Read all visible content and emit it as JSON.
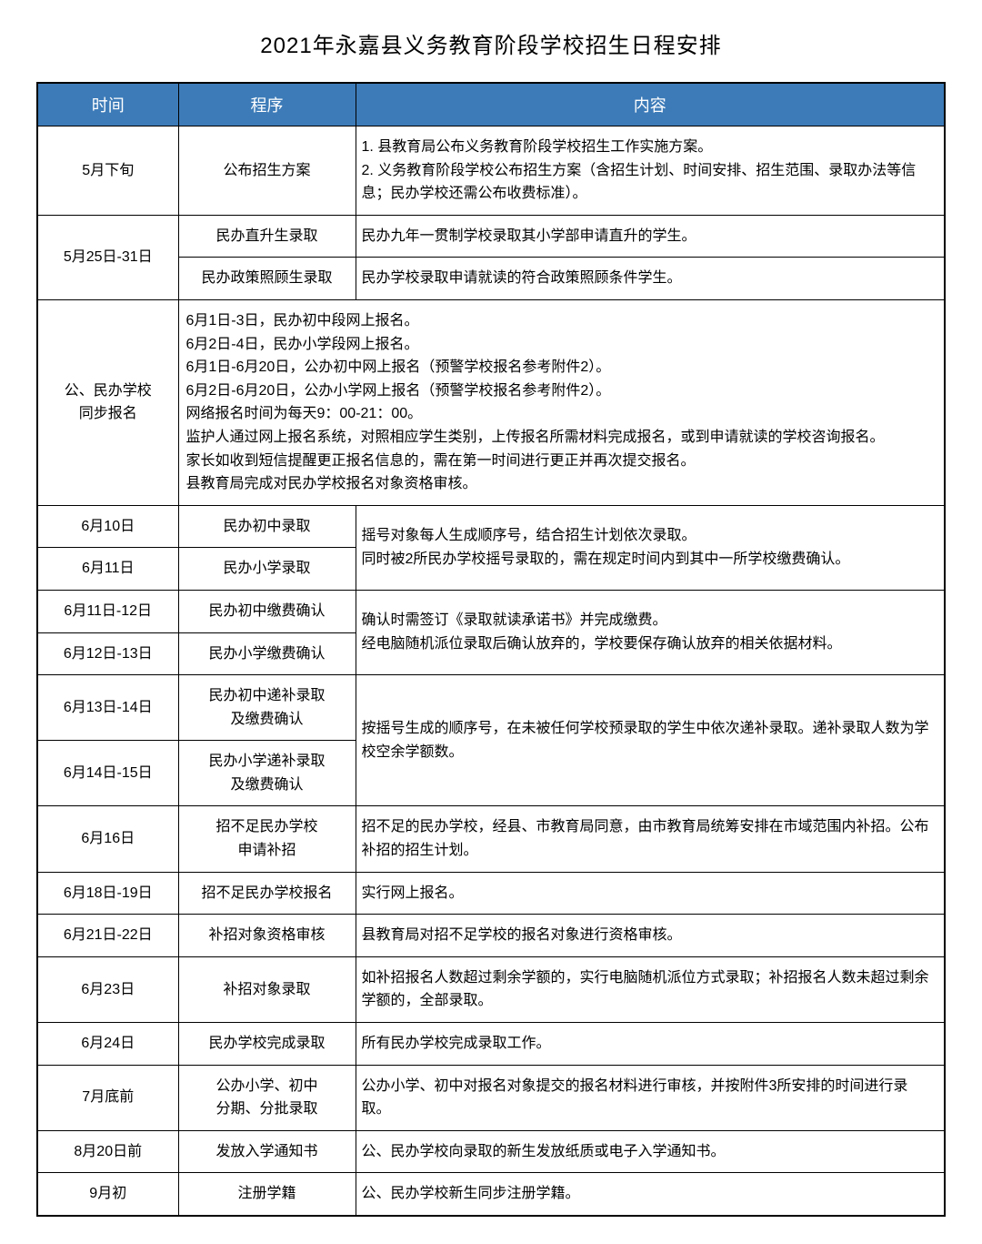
{
  "title": "2021年永嘉县义务教育阶段学校招生日程安排",
  "headers": {
    "time": "时间",
    "procedure": "程序",
    "content": "内容"
  },
  "rows": {
    "r1": {
      "time": "5月下旬",
      "proc": "公布招生方案",
      "content": "1. 县教育局公布义务教育阶段学校招生工作实施方案。\n2. 义务教育阶段学校公布招生方案（含招生计划、时间安排、招生范围、录取办法等信息；民办学校还需公布收费标准）。"
    },
    "r2": {
      "time": "5月25日-31日",
      "proc_a": "民办直升生录取",
      "content_a": "民办九年一贯制学校录取其小学部申请直升的学生。",
      "proc_b": "民办政策照顾生录取",
      "content_b": "民办学校录取申请就读的符合政策照顾条件学生。"
    },
    "r3": {
      "time": "公、民办学校\n同步报名",
      "content": "6月1日-3日，民办初中段网上报名。\n6月2日-4日，民办小学段网上报名。\n6月1日-6月20日，公办初中网上报名（预警学校报名参考附件2）。\n6月2日-6月20日，公办小学网上报名（预警学校报名参考附件2）。\n网络报名时间为每天9：00-21：00。\n监护人通过网上报名系统，对照相应学生类别，上传报名所需材料完成报名，或到申请就读的学校咨询报名。\n家长如收到短信提醒更正报名信息的，需在第一时间进行更正并再次提交报名。\n县教育局完成对民办学校报名对象资格审核。"
    },
    "r4": {
      "time_a": "6月10日",
      "proc_a": "民办初中录取",
      "time_b": "6月11日",
      "proc_b": "民办小学录取",
      "content": "摇号对象每人生成顺序号，结合招生计划依次录取。\n同时被2所民办学校摇号录取的，需在规定时间内到其中一所学校缴费确认。"
    },
    "r5": {
      "time_a": "6月11日-12日",
      "proc_a": "民办初中缴费确认",
      "time_b": "6月12日-13日",
      "proc_b": "民办小学缴费确认",
      "content": "确认时需签订《录取就读承诺书》并完成缴费。\n经电脑随机派位录取后确认放弃的，学校要保存确认放弃的相关依据材料。"
    },
    "r6": {
      "time_a": "6月13日-14日",
      "proc_a": "民办初中递补录取\n及缴费确认",
      "time_b": "6月14日-15日",
      "proc_b": "民办小学递补录取\n及缴费确认",
      "content": "按摇号生成的顺序号，在未被任何学校预录取的学生中依次递补录取。递补录取人数为学校空余学额数。"
    },
    "r7": {
      "time": "6月16日",
      "proc": "招不足民办学校\n申请补招",
      "content": "招不足的民办学校，经县、市教育局同意，由市教育局统筹安排在市域范围内补招。公布补招的招生计划。"
    },
    "r8": {
      "time": "6月18日-19日",
      "proc": "招不足民办学校报名",
      "content": "实行网上报名。"
    },
    "r9": {
      "time": "6月21日-22日",
      "proc": "补招对象资格审核",
      "content": "县教育局对招不足学校的报名对象进行资格审核。"
    },
    "r10": {
      "time": "6月23日",
      "proc": "补招对象录取",
      "content": "如补招报名人数超过剩余学额的，实行电脑随机派位方式录取；补招报名人数未超过剩余学额的，全部录取。"
    },
    "r11": {
      "time": "6月24日",
      "proc": "民办学校完成录取",
      "content": "所有民办学校完成录取工作。"
    },
    "r12": {
      "time": "7月底前",
      "proc": "公办小学、初中\n分期、分批录取",
      "content": "公办小学、初中对报名对象提交的报名材料进行审核，并按附件3所安排的时间进行录取。"
    },
    "r13": {
      "time": "8月20日前",
      "proc": "发放入学通知书",
      "content": "公、民办学校向录取的新生发放纸质或电子入学通知书。"
    },
    "r14": {
      "time": "9月初",
      "proc": "注册学籍",
      "content": "公、民办学校新生同步注册学籍。"
    }
  },
  "styling": {
    "header_bg": "#3d7bb8",
    "header_text_color": "#ffffff",
    "border_color": "#000000",
    "body_bg": "#ffffff",
    "text_color": "#000000",
    "title_fontsize": 24,
    "header_fontsize": 18,
    "cell_fontsize": 16,
    "col_widths": {
      "time": 155,
      "procedure": 195
    }
  }
}
